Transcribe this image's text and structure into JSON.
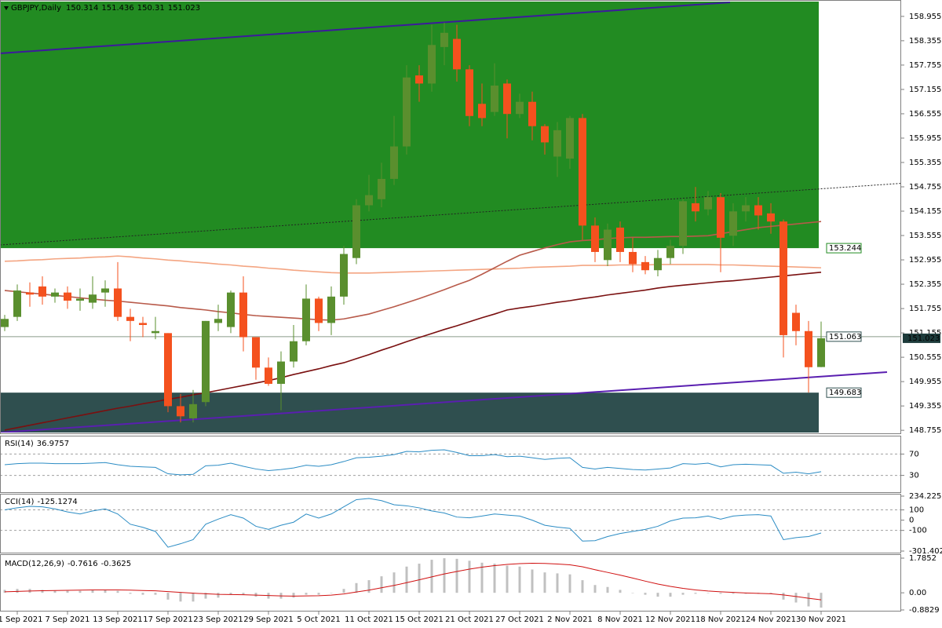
{
  "chart_data": [
    {
      "type": "candlestick",
      "title": "GBPJPY,Daily",
      "categories": [
        null,
        "1 Sep 2021",
        null,
        null,
        null,
        "7 Sep 2021",
        null,
        null,
        null,
        "13 Sep 2021",
        null,
        null,
        null,
        "17 Sep 2021",
        null,
        null,
        null,
        "23 Sep 2021",
        null,
        null,
        null,
        "29 Sep 2021",
        null,
        null,
        null,
        "5 Oct 2021",
        null,
        null,
        null,
        "11 Oct 2021",
        null,
        null,
        null,
        "15 Oct 2021",
        null,
        null,
        null,
        "21 Oct 2021",
        null,
        null,
        null,
        "27 Oct 2021",
        null,
        null,
        null,
        "2 Nov 2021",
        null,
        null,
        null,
        "8 Nov 2021",
        null,
        null,
        null,
        "12 Nov 2021",
        null,
        null,
        null,
        "18 Nov 2021",
        null,
        null,
        null,
        "24 Nov 2021",
        null,
        null,
        null,
        "30 Nov 2021"
      ],
      "open": [
        151.3,
        151.55,
        152.15,
        152.3,
        152.05,
        152.15,
        151.95,
        151.9,
        152.15,
        152.25,
        151.55,
        151.4,
        151.15,
        151.15,
        149.35,
        149.05,
        149.45,
        151.4,
        151.3,
        152.15,
        151.05,
        150.3,
        149.9,
        150.45,
        150.95,
        152.0,
        151.4,
        152.05,
        153.0,
        154.3,
        154.45,
        154.95,
        155.75,
        157.5,
        157.3,
        158.2,
        158.4,
        157.65,
        156.8,
        156.6,
        157.3,
        156.55,
        156.85,
        156.25,
        155.5,
        155.45,
        156.45,
        153.8,
        152.95,
        153.75,
        153.15,
        152.9,
        152.7,
        153.0,
        153.3,
        154.35,
        154.2,
        154.5,
        153.55,
        154.15,
        154.3,
        154.1,
        153.9,
        151.65,
        151.2,
        150.314
      ],
      "high": [
        151.6,
        152.35,
        152.4,
        152.55,
        152.25,
        152.3,
        152.25,
        152.55,
        152.45,
        152.9,
        151.75,
        151.55,
        151.55,
        151.15,
        149.65,
        149.75,
        151.45,
        151.85,
        152.2,
        152.55,
        151.05,
        150.55,
        150.7,
        151.35,
        152.35,
        152.05,
        152.3,
        153.3,
        154.45,
        155.05,
        155.35,
        156.5,
        157.75,
        157.75,
        158.75,
        158.8,
        158.75,
        157.75,
        157.3,
        157.8,
        157.4,
        157.05,
        157.1,
        156.3,
        156.35,
        156.5,
        156.55,
        154.0,
        153.85,
        153.9,
        153.5,
        153.05,
        153.2,
        153.45,
        154.45,
        154.75,
        154.65,
        154.6,
        154.35,
        154.5,
        154.5,
        154.35,
        153.95,
        151.85,
        151.45,
        151.436
      ],
      "low": [
        151.2,
        151.45,
        151.8,
        151.85,
        151.9,
        151.75,
        151.7,
        151.75,
        151.8,
        151.45,
        150.95,
        151.05,
        151.0,
        149.2,
        148.95,
        148.95,
        149.35,
        151.2,
        151.15,
        150.7,
        150.0,
        149.85,
        149.25,
        150.3,
        150.85,
        151.2,
        151.1,
        151.85,
        152.85,
        154.15,
        154.25,
        154.8,
        155.55,
        156.85,
        157.1,
        157.75,
        157.35,
        156.25,
        156.25,
        156.5,
        155.95,
        156.45,
        155.9,
        155.55,
        155.0,
        155.2,
        153.45,
        152.9,
        152.8,
        152.9,
        152.65,
        152.6,
        152.55,
        152.85,
        153.1,
        153.9,
        154.05,
        152.65,
        153.3,
        153.9,
        153.7,
        153.6,
        150.55,
        150.85,
        149.683,
        150.31
      ],
      "close": [
        151.5,
        152.2,
        152.1,
        152.05,
        152.15,
        151.95,
        152.0,
        152.1,
        152.25,
        151.55,
        151.45,
        151.35,
        151.2,
        149.35,
        149.1,
        149.4,
        151.45,
        151.5,
        152.15,
        151.05,
        150.3,
        149.9,
        150.45,
        150.95,
        152.0,
        151.4,
        152.05,
        153.1,
        154.3,
        154.55,
        154.95,
        155.75,
        157.45,
        157.3,
        158.25,
        158.55,
        157.65,
        156.5,
        156.45,
        157.25,
        156.55,
        156.85,
        156.25,
        155.85,
        156.15,
        156.45,
        153.8,
        153.15,
        153.7,
        153.15,
        152.85,
        152.7,
        153.0,
        153.3,
        154.4,
        154.15,
        154.5,
        153.5,
        154.15,
        154.3,
        154.05,
        153.9,
        151.1,
        151.2,
        150.31,
        151.023
      ],
      "up_color": "#5a8f2e",
      "down_color": "#f4511e",
      "series": [
        {
          "color": "#f4a582",
          "values": [
            152.92,
            152.93,
            152.95,
            152.96,
            152.98,
            152.99,
            153.0,
            153.02,
            153.03,
            153.05,
            153.03,
            153.0,
            152.98,
            152.95,
            152.93,
            152.9,
            152.88,
            152.85,
            152.83,
            152.8,
            152.78,
            152.75,
            152.73,
            152.7,
            152.68,
            152.66,
            152.64,
            152.63,
            152.63,
            152.63,
            152.64,
            152.65,
            152.66,
            152.67,
            152.68,
            152.69,
            152.7,
            152.71,
            152.72,
            152.73,
            152.74,
            152.75,
            152.77,
            152.78,
            152.79,
            152.8,
            152.82,
            152.82,
            152.82,
            152.83,
            152.83,
            152.83,
            152.84,
            152.84,
            152.84,
            152.84,
            152.84,
            152.83,
            152.83,
            152.82,
            152.81,
            152.8,
            152.79,
            152.78,
            152.77,
            152.76
          ]
        },
        {
          "color": "#b85a4a",
          "values": [
            152.2,
            152.17,
            152.14,
            152.11,
            152.08,
            152.05,
            152.02,
            151.99,
            151.96,
            151.94,
            151.91,
            151.88,
            151.85,
            151.82,
            151.78,
            151.75,
            151.72,
            151.68,
            151.65,
            151.61,
            151.58,
            151.56,
            151.54,
            151.52,
            151.5,
            151.48,
            151.47,
            151.5,
            151.56,
            151.62,
            151.71,
            151.8,
            151.9,
            152.0,
            152.11,
            152.22,
            152.34,
            152.45,
            152.6,
            152.76,
            152.92,
            153.07,
            153.16,
            153.25,
            153.33,
            153.4,
            153.43,
            153.45,
            153.48,
            153.5,
            153.51,
            153.51,
            153.52,
            153.53,
            153.53,
            153.54,
            153.55,
            153.6,
            153.65,
            153.7,
            153.75,
            153.78,
            153.81,
            153.84,
            153.87,
            153.9
          ]
        },
        {
          "color": "#7a1010",
          "values": [
            148.76,
            148.82,
            148.88,
            148.94,
            149.0,
            149.06,
            149.12,
            149.18,
            149.24,
            149.3,
            149.35,
            149.41,
            149.46,
            149.52,
            149.57,
            149.63,
            149.68,
            149.74,
            149.8,
            149.86,
            149.92,
            149.98,
            150.05,
            150.13,
            150.2,
            150.27,
            150.35,
            150.42,
            150.52,
            150.62,
            150.73,
            150.83,
            150.94,
            151.04,
            151.14,
            151.24,
            151.33,
            151.43,
            151.53,
            151.62,
            151.72,
            151.77,
            151.81,
            151.86,
            151.91,
            151.95,
            152.0,
            152.04,
            152.09,
            152.13,
            152.17,
            152.21,
            152.26,
            152.3,
            152.33,
            152.36,
            152.39,
            152.42,
            152.44,
            152.47,
            152.5,
            152.53,
            152.56,
            152.59,
            152.62,
            152.65
          ]
        }
      ],
      "zones": [
        {
          "edge": 153.244,
          "side": "above",
          "color": "#228b22"
        },
        {
          "edge": 149.683,
          "side": "below",
          "color": "#2f4f4f"
        }
      ],
      "hline": 151.063,
      "ylim": [
        148.7,
        159.32
      ],
      "yticks": [
        158.955,
        158.355,
        157.755,
        157.155,
        156.555,
        155.955,
        155.355,
        154.755,
        154.155,
        153.555,
        152.955,
        152.355,
        151.755,
        151.155,
        150.555,
        149.955,
        149.355,
        148.755
      ]
    },
    {
      "type": "indicator",
      "title": "RSI(14)",
      "grid": true,
      "ylim": [
        0,
        100
      ],
      "yticks": [
        70,
        30
      ],
      "series": [
        {
          "color": "#2b8cc4",
          "style": "line",
          "values": [
            50,
            52,
            53,
            53,
            52,
            52,
            52,
            53,
            54,
            50,
            47,
            46,
            45,
            33,
            31,
            32,
            48,
            49,
            53,
            47,
            42,
            39,
            41,
            44,
            49,
            47,
            50,
            56,
            63,
            64,
            66,
            69,
            75,
            74,
            77,
            78,
            73,
            67,
            67,
            69,
            65,
            66,
            63,
            60,
            62,
            63,
            45,
            42,
            45,
            43,
            41,
            40,
            42,
            44,
            52,
            51,
            53,
            46,
            50,
            51,
            50,
            49,
            34,
            36,
            33,
            36.9757
          ]
        }
      ]
    },
    {
      "type": "indicator",
      "title": "CCI(14)",
      "grid": true,
      "ylim": [
        -301.4027,
        234.2259
      ],
      "yticks": [
        234.2259,
        100,
        0,
        -100,
        -301.4027
      ],
      "series": [
        {
          "color": "#2b8cc4",
          "style": "line",
          "values": [
            100,
            120,
            135,
            130,
            110,
            80,
            60,
            90,
            110,
            60,
            -40,
            -70,
            -110,
            -264,
            -230,
            -190,
            -40,
            10,
            53,
            20,
            -60,
            -90,
            -50,
            -20,
            60,
            20,
            60,
            130,
            200,
            211,
            190,
            150,
            140,
            120,
            90,
            70,
            30,
            23,
            40,
            60,
            50,
            40,
            0,
            -50,
            -68,
            -80,
            -204,
            -200,
            -160,
            -130,
            -110,
            -90,
            -60,
            -8,
            20,
            23,
            40,
            10,
            40,
            50,
            53,
            40,
            -190,
            -170,
            -160,
            -125.1274
          ]
        }
      ]
    },
    {
      "type": "indicator",
      "title": "MACD(12,26,9)",
      "grid": false,
      "ylim": [
        -0.8829,
        1.7852
      ],
      "yticks": [
        1.7852,
        {
          "value": 0,
          "label": "0.00"
        },
        -0.8829
      ],
      "series": [
        {
          "color": "#c0c0c0",
          "style": "bar",
          "values": [
            0.15,
            0.2,
            0.2,
            0.15,
            0.1,
            0.1,
            0.1,
            0.15,
            0.15,
            0.1,
            -0.05,
            -0.1,
            -0.1,
            -0.35,
            -0.45,
            -0.45,
            -0.3,
            -0.25,
            -0.1,
            -0.1,
            -0.2,
            -0.3,
            -0.3,
            -0.25,
            -0.1,
            -0.1,
            0.0,
            0.2,
            0.5,
            0.65,
            0.85,
            1.05,
            1.35,
            1.5,
            1.7,
            1.78,
            1.75,
            1.65,
            1.55,
            1.5,
            1.4,
            1.35,
            1.2,
            1.05,
            1.0,
            0.95,
            0.65,
            0.4,
            0.3,
            0.15,
            0.0,
            -0.1,
            -0.2,
            -0.2,
            -0.1,
            -0.05,
            0.0,
            -0.05,
            -0.05,
            -0.05,
            -0.05,
            -0.05,
            -0.35,
            -0.5,
            -0.7,
            -0.7616
          ]
        },
        {
          "color": "#d01010",
          "style": "line",
          "values": [
            0.05,
            0.07,
            0.09,
            0.11,
            0.12,
            0.13,
            0.14,
            0.15,
            0.15,
            0.15,
            0.14,
            0.12,
            0.1,
            0.06,
            0.02,
            -0.02,
            -0.05,
            -0.08,
            -0.09,
            -0.1,
            -0.12,
            -0.14,
            -0.16,
            -0.17,
            -0.16,
            -0.15,
            -0.12,
            -0.06,
            0.04,
            0.14,
            0.26,
            0.38,
            0.52,
            0.67,
            0.82,
            0.97,
            1.1,
            1.22,
            1.32,
            1.4,
            1.46,
            1.5,
            1.52,
            1.51,
            1.48,
            1.44,
            1.34,
            1.19,
            1.05,
            0.91,
            0.76,
            0.6,
            0.45,
            0.33,
            0.23,
            0.15,
            0.09,
            0.05,
            0.02,
            -0.01,
            -0.03,
            -0.05,
            -0.11,
            -0.19,
            -0.28,
            -0.3625
          ]
        }
      ]
    }
  ]
}
